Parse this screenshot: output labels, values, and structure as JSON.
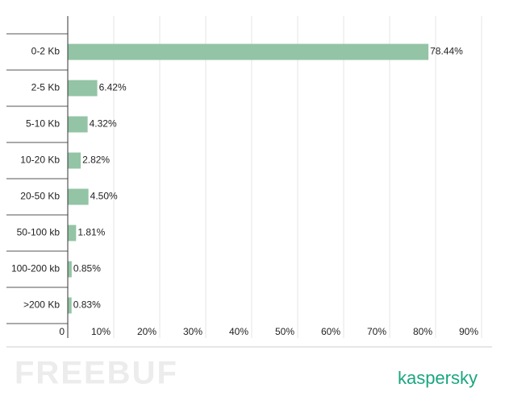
{
  "chart_data": {
    "type": "bar",
    "orientation": "horizontal",
    "categories": [
      "0-2 Kb",
      "2-5 Kb",
      "5-10 Kb",
      "10-20 Kb",
      "20-50 Kb",
      "50-100 kb",
      "100-200 kb",
      ">200 Kb"
    ],
    "values": [
      78.44,
      6.42,
      4.32,
      2.82,
      4.5,
      1.81,
      0.85,
      0.83
    ],
    "value_labels": [
      "78.44%",
      "6.42%",
      "4.32%",
      "2.82%",
      "4.50%",
      "1.81%",
      "0.85%",
      "0.83%"
    ],
    "color": "#93c4a5",
    "xlim": [
      0,
      90
    ],
    "xticks": [
      0,
      {
        "value": 10,
        "label": "10%"
      },
      {
        "value": 20,
        "label": "20%"
      },
      {
        "value": 30,
        "label": "30%"
      },
      {
        "value": 40,
        "label": "40%"
      },
      {
        "value": 50,
        "label": "50%"
      },
      {
        "value": 60,
        "label": "60%"
      },
      {
        "value": 70,
        "label": "70%"
      },
      {
        "value": 80,
        "label": "80%"
      },
      {
        "value": 90,
        "label": "90%"
      }
    ],
    "grid": true,
    "watermark": "FREEBUF",
    "logo": "kaspersky"
  }
}
